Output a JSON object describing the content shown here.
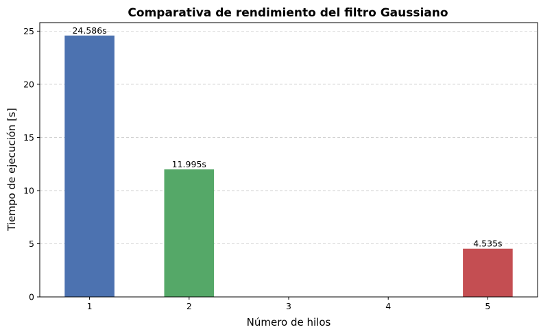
{
  "chart_data": {
    "type": "bar",
    "title": "Comparativa de rendimiento del filtro Gaussiano",
    "xlabel": "Número de hilos",
    "ylabel": "Tiempo de ejecución [s]",
    "categories": [
      1,
      2,
      3,
      4,
      5
    ],
    "bars": [
      {
        "x": 1,
        "value": 24.586,
        "label": "24.586s",
        "color": "#4c72b0"
      },
      {
        "x": 2,
        "value": 11.995,
        "label": "11.995s",
        "color": "#55a868"
      },
      {
        "x": 5,
        "value": 4.535,
        "label": "4.535s",
        "color": "#c44e52"
      }
    ],
    "xlim": [
      0.5,
      5.5
    ],
    "ylim": [
      0,
      25.8
    ],
    "yticks": [
      0,
      5,
      10,
      15,
      20,
      25
    ],
    "xticks": [
      1,
      2,
      3,
      4,
      5
    ],
    "grid": {
      "axis": "y",
      "style": "dashed",
      "color": "#cccccc"
    }
  }
}
